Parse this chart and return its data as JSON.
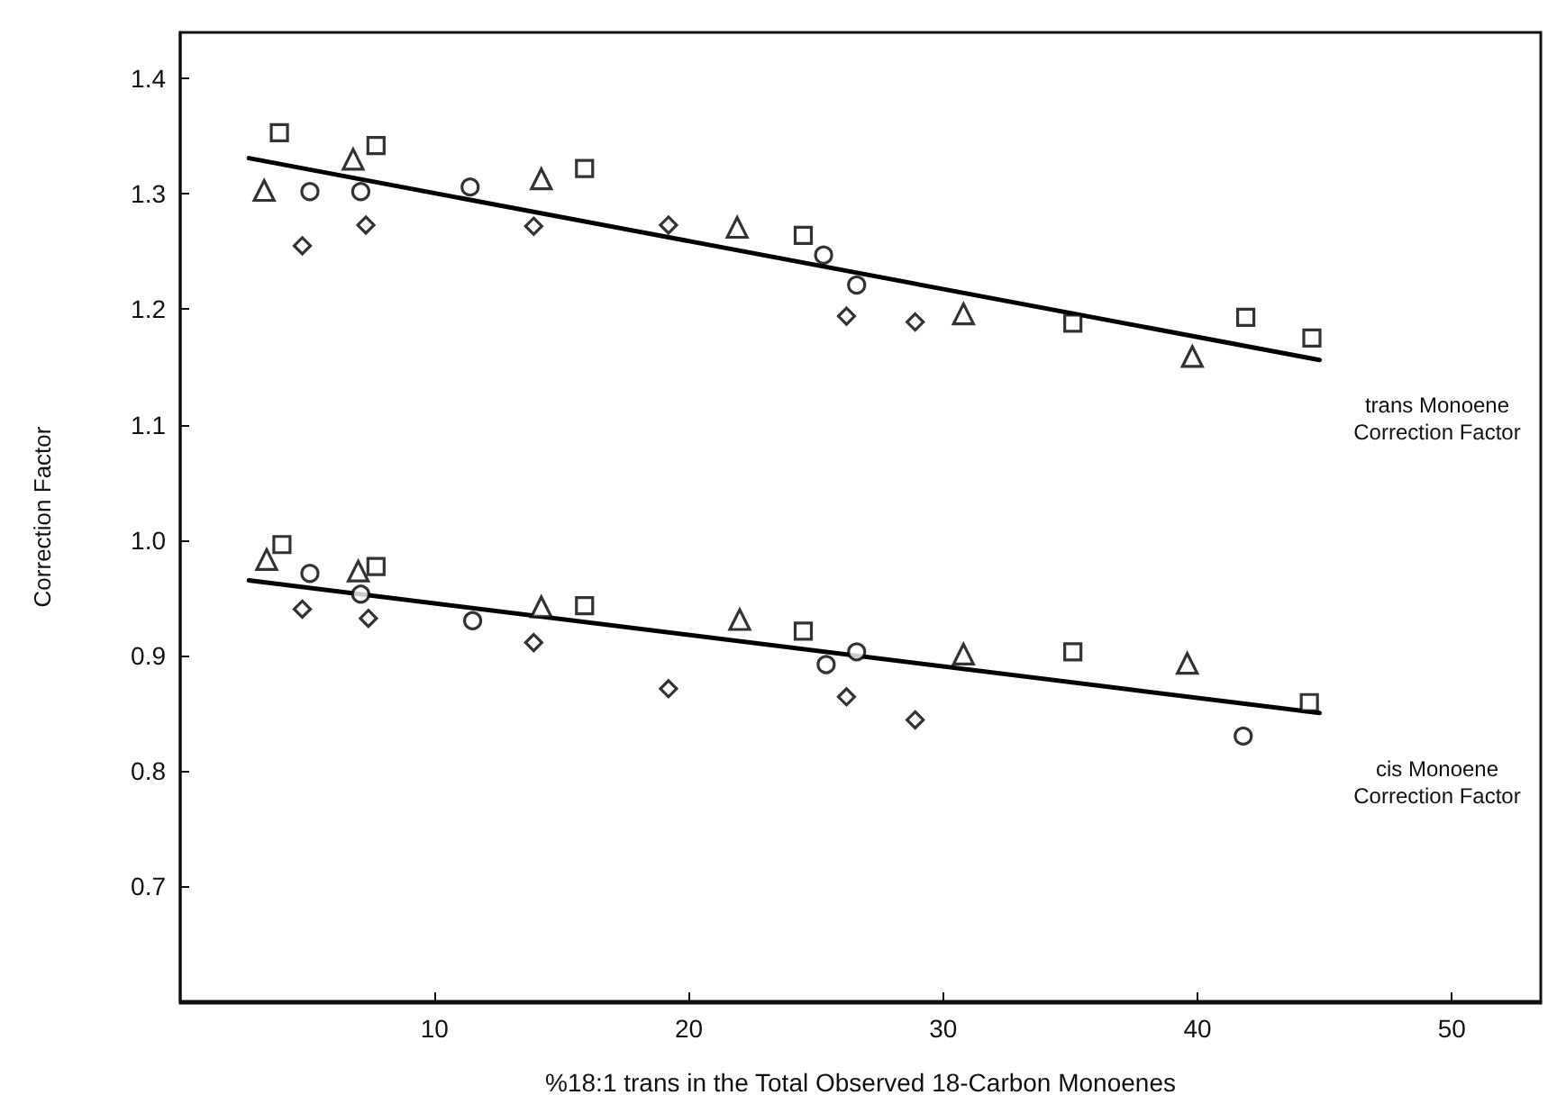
{
  "chart_data": {
    "type": "scatter",
    "xlabel": "%18:1 trans in the Total Observed 18-Carbon Monoenes",
    "ylabel": "Correction Factor",
    "xlim": [
      0,
      53.5
    ],
    "ylim": [
      0.6,
      1.44
    ],
    "xticks": [
      10,
      20,
      30,
      40,
      50
    ],
    "yticks": [
      {
        "value": 0.7,
        "label": "0.7"
      },
      {
        "value": 0.8,
        "label": "0.8"
      },
      {
        "value": 0.9,
        "label": "0.9"
      },
      {
        "value": 1,
        "label": "1.0"
      },
      {
        "value": 1.1,
        "label": "1.1"
      },
      {
        "value": 1.2,
        "label": "1.2"
      },
      {
        "value": 1.3,
        "label": "1.3"
      },
      {
        "value": 1.4,
        "label": "1.4"
      }
    ],
    "grid": false,
    "series": [
      {
        "marker": "square",
        "color": "#000000",
        "x": [
          3.9,
          7.7,
          15.9,
          24.5,
          35.1,
          41.9,
          44.5,
          4.0,
          7.7,
          15.9,
          24.5,
          35.1,
          44.4
        ],
        "values": [
          1.353,
          1.342,
          1.322,
          1.264,
          1.188,
          1.193,
          1.175,
          0.996,
          0.977,
          0.943,
          0.921,
          0.903,
          0.859
        ]
      },
      {
        "marker": "triangle",
        "color": "#000000",
        "x": [
          3.3,
          6.8,
          14.2,
          21.9,
          30.8,
          39.8,
          3.4,
          7.0,
          14.2,
          22.0,
          30.8,
          39.6
        ],
        "values": [
          1.303,
          1.33,
          1.313,
          1.271,
          1.196,
          1.159,
          0.983,
          0.973,
          0.942,
          0.931,
          0.901,
          0.893
        ]
      },
      {
        "marker": "circle",
        "color": "#000000",
        "x": [
          5.1,
          7.1,
          11.4,
          25.3,
          26.6,
          5.1,
          7.1,
          11.5,
          25.4,
          26.6,
          41.8
        ],
        "values": [
          1.302,
          1.302,
          1.306,
          1.247,
          1.221,
          0.971,
          0.953,
          0.93,
          0.892,
          0.903,
          0.83
        ]
      },
      {
        "marker": "diamond",
        "color": "#000000",
        "x": [
          4.8,
          7.3,
          13.9,
          19.2,
          26.2,
          28.9,
          4.8,
          7.4,
          13.9,
          19.2,
          26.2,
          28.9
        ],
        "values": [
          1.255,
          1.273,
          1.272,
          1.273,
          1.194,
          1.189,
          0.94,
          0.932,
          0.911,
          0.871,
          0.864,
          0.844
        ]
      },
      {
        "type": "line",
        "marker": "none",
        "line_style": "solid",
        "color": "#000000",
        "x": [
          2.7,
          44.8
        ],
        "values": [
          1.331,
          1.156
        ]
      },
      {
        "type": "line",
        "marker": "none",
        "line_style": "solid",
        "color": "#000000",
        "x": [
          2.7,
          44.8
        ],
        "values": [
          0.965,
          0.85
        ]
      }
    ],
    "annotations": [
      "trans Monoene Correction Factor",
      "cis Monoene Correction Factor"
    ]
  }
}
